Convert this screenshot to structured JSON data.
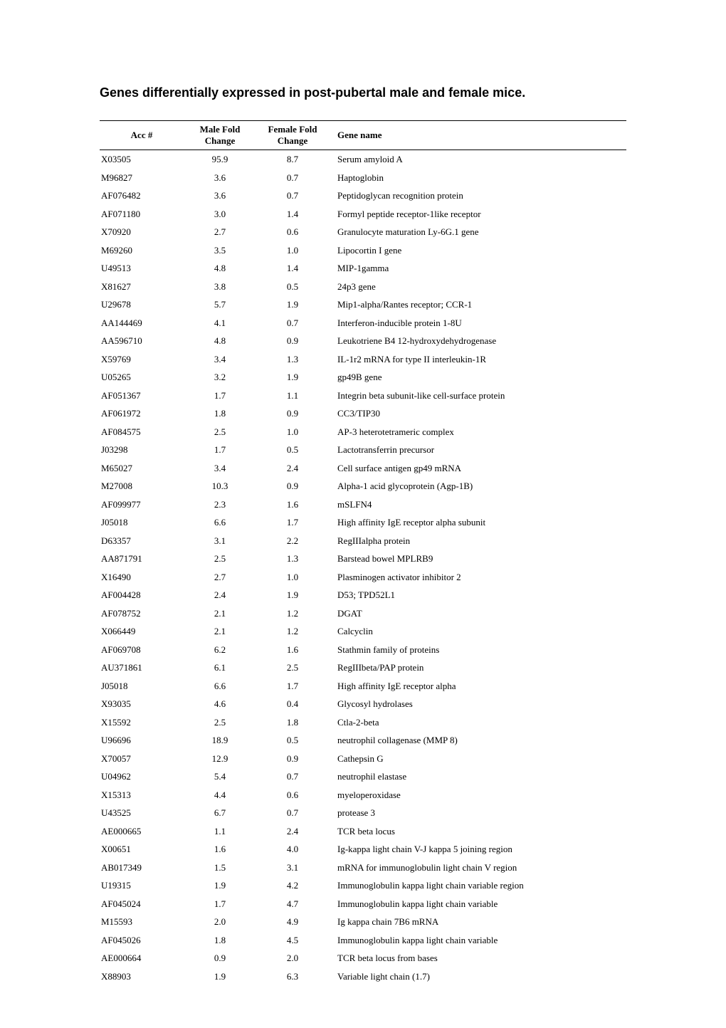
{
  "title": "Genes differentially expressed in post-pubertal male and female mice.",
  "columns": {
    "acc": "Acc #",
    "male": "Male Fold Change",
    "female": "Female Fold Change",
    "gene": "Gene name"
  },
  "rows": [
    {
      "acc": "X03505",
      "male": "95.9",
      "female": "8.7",
      "gene": "Serum amyloid A"
    },
    {
      "acc": "M96827",
      "male": "3.6",
      "female": "0.7",
      "gene": "Haptoglobin"
    },
    {
      "acc": "AF076482",
      "male": "3.6",
      "female": "0.7",
      "gene": "Peptidoglycan recognition protein"
    },
    {
      "acc": "AF071180",
      "male": "3.0",
      "female": "1.4",
      "gene": "Formyl peptide receptor-1like receptor"
    },
    {
      "acc": "X70920",
      "male": "2.7",
      "female": "0.6",
      "gene": "Granulocyte maturation Ly-6G.1 gene"
    },
    {
      "acc": "M69260",
      "male": "3.5",
      "female": "1.0",
      "gene": "Lipocortin I gene"
    },
    {
      "acc": "U49513",
      "male": "4.8",
      "female": "1.4",
      "gene": "MIP-1gamma"
    },
    {
      "acc": "X81627",
      "male": "3.8",
      "female": "0.5",
      "gene": "24p3 gene"
    },
    {
      "acc": "U29678",
      "male": "5.7",
      "female": "1.9",
      "gene": "Mip1-alpha/Rantes receptor; CCR-1"
    },
    {
      "acc": "AA144469",
      "male": "4.1",
      "female": "0.7",
      "gene": "Interferon-inducible protein 1-8U"
    },
    {
      "acc": "AA596710",
      "male": "4.8",
      "female": "0.9",
      "gene": "Leukotriene B4 12-hydroxydehydrogenase"
    },
    {
      "acc": "X59769",
      "male": "3.4",
      "female": "1.3",
      "gene": "IL-1r2 mRNA for type II interleukin-1R"
    },
    {
      "acc": "U05265",
      "male": "3.2",
      "female": "1.9",
      "gene": "gp49B gene"
    },
    {
      "acc": "AF051367",
      "male": "1.7",
      "female": "1.1",
      "gene": "Integrin beta subunit-like cell-surface protein"
    },
    {
      "acc": "AF061972",
      "male": "1.8",
      "female": "0.9",
      "gene": "CC3/TIP30"
    },
    {
      "acc": "AF084575",
      "male": "2.5",
      "female": "1.0",
      "gene": "AP-3 heterotetrameric complex"
    },
    {
      "acc": "J03298",
      "male": "1.7",
      "female": "0.5",
      "gene": "Lactotransferrin precursor"
    },
    {
      "acc": "M65027",
      "male": "3.4",
      "female": "2.4",
      "gene": "Cell surface antigen gp49 mRNA"
    },
    {
      "acc": "M27008",
      "male": "10.3",
      "female": "0.9",
      "gene": "Alpha-1 acid glycoprotein (Agp-1B)"
    },
    {
      "acc": "AF099977",
      "male": "2.3",
      "female": "1.6",
      "gene": "mSLFN4"
    },
    {
      "acc": "J05018",
      "male": "6.6",
      "female": "1.7",
      "gene": "High affinity IgE receptor alpha subunit"
    },
    {
      "acc": "D63357",
      "male": "3.1",
      "female": "2.2",
      "gene": "RegIIIalpha protein"
    },
    {
      "acc": "AA871791",
      "male": "2.5",
      "female": "1.3",
      "gene": "Barstead bowel MPLRB9"
    },
    {
      "acc": "X16490",
      "male": "2.7",
      "female": "1.0",
      "gene": "Plasminogen activator inhibitor 2"
    },
    {
      "acc": "AF004428",
      "male": "2.4",
      "female": "1.9",
      "gene": "D53; TPD52L1"
    },
    {
      "acc": "AF078752",
      "male": "2.1",
      "female": "1.2",
      "gene": "DGAT"
    },
    {
      "acc": "X066449",
      "male": "2.1",
      "female": "1.2",
      "gene": "Calcyclin"
    },
    {
      "acc": "AF069708",
      "male": "6.2",
      "female": "1.6",
      "gene": "Stathmin family of proteins"
    },
    {
      "acc": "AU371861",
      "male": "6.1",
      "female": "2.5",
      "gene": "RegIIIbeta/PAP protein"
    },
    {
      "acc": "J05018",
      "male": "6.6",
      "female": "1.7",
      "gene": "High affinity IgE receptor alpha"
    },
    {
      "acc": "X93035",
      "male": "4.6",
      "female": "0.4",
      "gene": "Glycosyl hydrolases"
    },
    {
      "acc": "X15592",
      "male": "2.5",
      "female": "1.8",
      "gene": "Ctla-2-beta"
    },
    {
      "acc": "U96696",
      "male": "18.9",
      "female": "0.5",
      "gene": "neutrophil collagenase (MMP 8)"
    },
    {
      "acc": "X70057",
      "male": "12.9",
      "female": "0.9",
      "gene": "Cathepsin G"
    },
    {
      "acc": "U04962",
      "male": "5.4",
      "female": "0.7",
      "gene": "neutrophil elastase"
    },
    {
      "acc": "X15313",
      "male": "4.4",
      "female": "0.6",
      "gene": "myeloperoxidase"
    },
    {
      "acc": "U43525",
      "male": "6.7",
      "female": "0.7",
      "gene": "protease 3"
    },
    {
      "acc": "AE000665",
      "male": "1.1",
      "female": "2.4",
      "gene": "TCR beta locus"
    },
    {
      "acc": "X00651",
      "male": "1.6",
      "female": "4.0",
      "gene": "Ig-kappa light chain V-J kappa 5 joining region"
    },
    {
      "acc": "AB017349",
      "male": "1.5",
      "female": "3.1",
      "gene": "mRNA for immunoglobulin light chain V region"
    },
    {
      "acc": "U19315",
      "male": "1.9",
      "female": "4.2",
      "gene": "Immunoglobulin kappa light chain variable region"
    },
    {
      "acc": "AF045024",
      "male": "1.7",
      "female": "4.7",
      "gene": "Immunoglobulin kappa light chain variable"
    },
    {
      "acc": "M15593",
      "male": "2.0",
      "female": "4.9",
      "gene": "Ig kappa chain 7B6 mRNA"
    },
    {
      "acc": "AF045026",
      "male": "1.8",
      "female": "4.5",
      "gene": "Immunoglobulin kappa light chain variable"
    },
    {
      "acc": "AE000664",
      "male": "0.9",
      "female": "2.0",
      "gene": "TCR beta locus from bases"
    },
    {
      "acc": "X88903",
      "male": "1.9",
      "female": "6.3",
      "gene": "Variable light chain (1.7)"
    }
  ],
  "styling": {
    "background_color": "#ffffff",
    "text_color": "#000000",
    "title_font": "Arial",
    "title_fontsize": 18,
    "title_fontweight": "bold",
    "body_font": "Times New Roman",
    "body_fontsize": 13,
    "header_border_top": "1.5px solid #000000",
    "header_border_bottom": "1px solid #000000",
    "col_widths": {
      "acc": 110,
      "male": 90,
      "female": 90
    },
    "row_line_height": 1.5
  }
}
